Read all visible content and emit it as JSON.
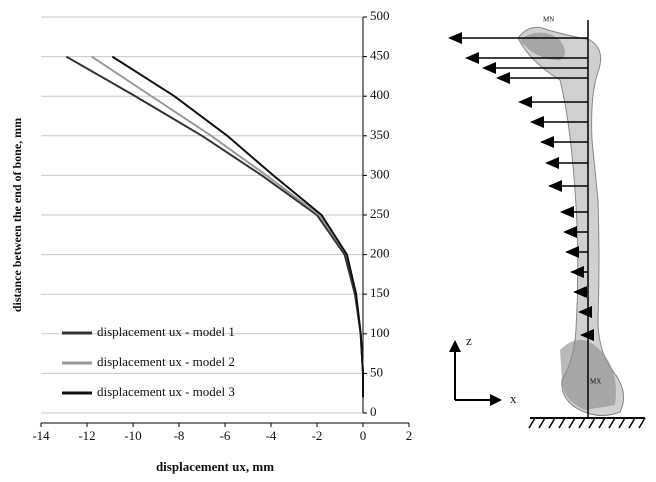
{
  "chart_data": {
    "type": "line",
    "x_label": "displacement ux, mm",
    "y_label": "distance between the end of bone, mm",
    "y": [
      450,
      400,
      350,
      300,
      250,
      200,
      150,
      100,
      50,
      20
    ],
    "series": [
      {
        "name": "displacement ux - model 1",
        "color": "#333333",
        "values": [
          -12.9,
          -9.9,
          -7.0,
          -4.4,
          -2.0,
          -0.8,
          -0.35,
          -0.1,
          0,
          0
        ]
      },
      {
        "name": "displacement ux - model 2",
        "color": "#999999",
        "values": [
          -11.8,
          -9.2,
          -6.6,
          -4.2,
          -1.9,
          -0.7,
          -0.3,
          -0.1,
          0,
          0
        ]
      },
      {
        "name": "displacement ux - model 3",
        "color": "#111111",
        "values": [
          -10.9,
          -8.2,
          -5.9,
          -3.9,
          -1.8,
          -0.7,
          -0.3,
          -0.1,
          0,
          0
        ]
      }
    ],
    "xlim": [
      -14,
      2
    ],
    "xticks": [
      -14,
      -12,
      -10,
      -8,
      -6,
      -4,
      -2,
      0,
      2
    ],
    "ylim": [
      0,
      500
    ],
    "yticks": [
      0,
      50,
      100,
      150,
      200,
      250,
      300,
      350,
      400,
      450,
      500
    ],
    "grid": true,
    "legend": "lower left"
  },
  "diagram": {
    "top_marker": "MN",
    "bottom_marker": "MX",
    "axis_z": "z",
    "axis_x": "x"
  }
}
